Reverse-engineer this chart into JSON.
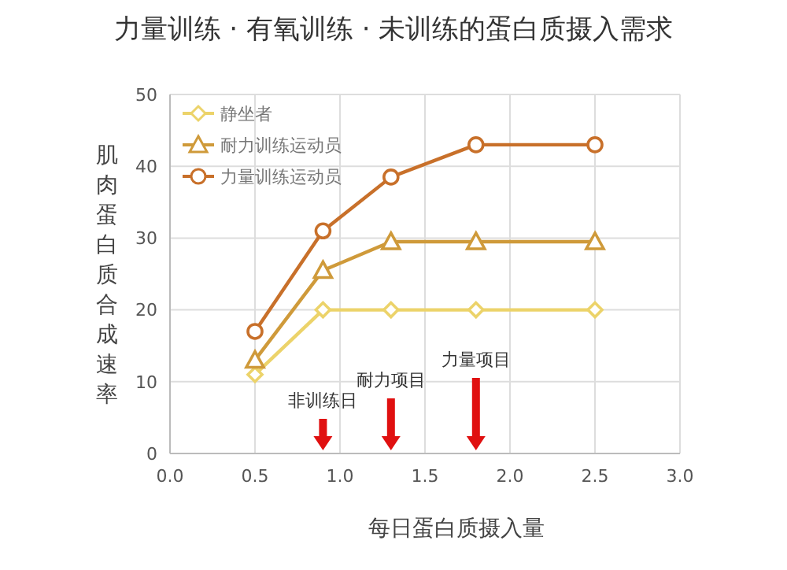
{
  "chart_data": {
    "type": "line",
    "title": "力量训练 · 有氧训练 · 未训练的蛋白质摄入需求",
    "xlabel": "每日蛋白质摄入量",
    "ylabel": "肌肉蛋白质合成速率",
    "x": [
      0.5,
      0.9,
      1.3,
      1.8,
      2.5
    ],
    "series": [
      {
        "name": "静坐者",
        "color": "#ecd36a",
        "marker": "diamond",
        "values": [
          11,
          20,
          20,
          20,
          20
        ]
      },
      {
        "name": "耐力训练运动员",
        "color": "#cf9a3a",
        "marker": "triangle",
        "values": [
          13,
          25.5,
          29.5,
          29.5,
          29.5
        ]
      },
      {
        "name": "力量训练运动员",
        "color": "#c8702a",
        "marker": "circle",
        "values": [
          17,
          31,
          38.5,
          43,
          43
        ]
      }
    ],
    "xlim": [
      0,
      3
    ],
    "xticks": [
      {
        "value": 0,
        "label": "0.0"
      },
      {
        "value": 0.5,
        "label": "0.5"
      },
      {
        "value": 1,
        "label": "1.0"
      },
      {
        "value": 1.5,
        "label": "1.5"
      },
      {
        "value": 2,
        "label": "2.0"
      },
      {
        "value": 2.5,
        "label": "2.5"
      },
      {
        "value": 3,
        "label": "3.0"
      }
    ],
    "ylim": [
      0,
      50
    ],
    "yticks": [
      0,
      10,
      20,
      30,
      40,
      50
    ],
    "grid": true,
    "legend": "top left",
    "line_style": "solid",
    "annotations": [
      "非训练日",
      "耐力项目",
      "力量项目"
    ]
  }
}
